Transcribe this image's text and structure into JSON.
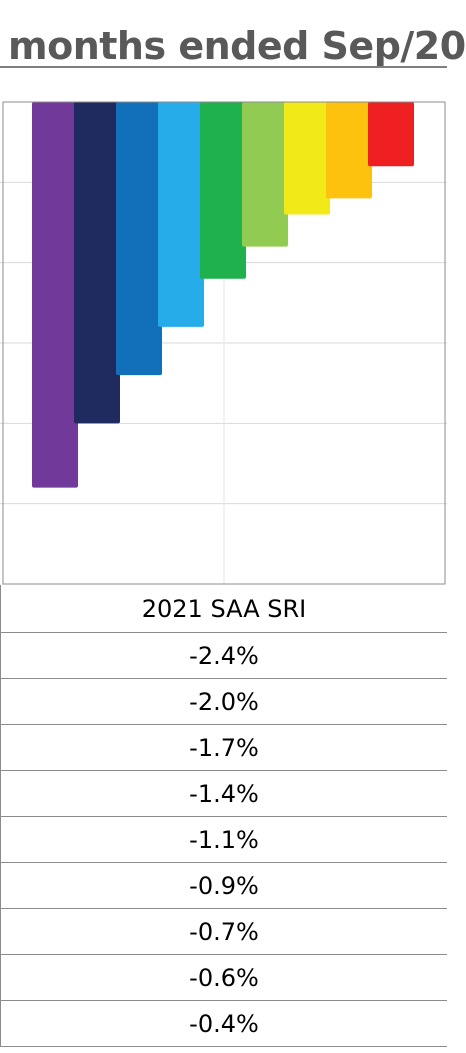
{
  "title": "months ended Sep/20",
  "chart_data": {
    "type": "bar",
    "categories": [
      "",
      "",
      "",
      "",
      "",
      "",
      "",
      "",
      ""
    ],
    "values": [
      -2.4,
      -2.0,
      -1.7,
      -1.4,
      -1.1,
      -0.9,
      -0.7,
      -0.6,
      -0.4
    ],
    "colors": [
      "#70399a",
      "#1f2a5e",
      "#1270bb",
      "#27acea",
      "#1fb14e",
      "#92cb52",
      "#f2e919",
      "#fdc20e",
      "#ef2022"
    ],
    "ylim": [
      -3.0,
      0.0
    ],
    "grid": true
  },
  "table": {
    "header": "2021 SAA SRI",
    "rows": [
      "-2.4%",
      "-2.0%",
      "-1.7%",
      "-1.4%",
      "-1.1%",
      "-0.9%",
      "-0.7%",
      "-0.6%",
      "-0.4%"
    ]
  }
}
